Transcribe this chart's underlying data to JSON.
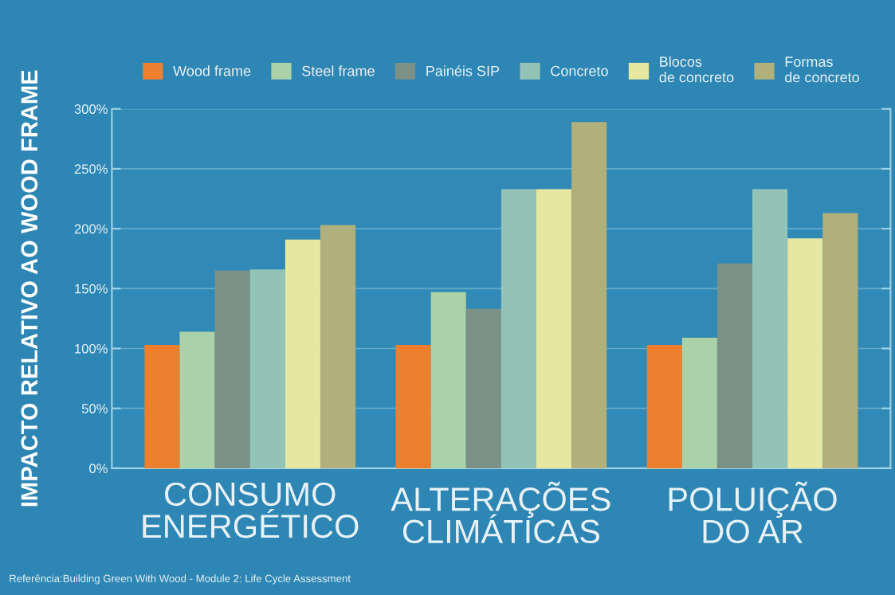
{
  "chart_data": {
    "type": "bar",
    "categories": [
      "CONSUMO\nENERGÉTICO",
      "ALTERAÇÕES\nCLIMÁTICAS",
      "POLUIÇÃO\nDO AR"
    ],
    "ylabel": "IMPACTO RELATIVO AO WOOD FRAME",
    "series": [
      {
        "name": "Wood frame",
        "color": "#ee7f2d",
        "values": [
          103,
          103,
          103
        ]
      },
      {
        "name": "Steel frame",
        "color": "#abd1a9",
        "values": [
          114,
          147,
          109
        ]
      },
      {
        "name": "Painéis SIP",
        "color": "#7b9187",
        "values": [
          165,
          133,
          171
        ]
      },
      {
        "name": "Concreto",
        "color": "#93c3b7",
        "values": [
          166,
          233,
          233
        ]
      },
      {
        "name": "Blocos\nde concreto",
        "color": "#e6e8a2",
        "values": [
          191,
          233,
          192
        ]
      },
      {
        "name": "Formas\nde concreto",
        "color": "#afb07b",
        "values": [
          203,
          289,
          213
        ]
      }
    ],
    "ylim": [
      0,
      300
    ],
    "yticks": [
      {
        "value": 0,
        "label": "0%"
      },
      {
        "value": 50,
        "label": "50%"
      },
      {
        "value": 100,
        "label": "100%"
      },
      {
        "value": 150,
        "label": "150%"
      },
      {
        "value": 200,
        "label": "200%"
      },
      {
        "value": 250,
        "label": "250%"
      },
      {
        "value": 300,
        "label": "300%"
      }
    ],
    "grid": "y",
    "legend": "top",
    "annotations": [
      "Referência:Building Green With Wood - Module 2: Life Cycle Assessment"
    ]
  }
}
